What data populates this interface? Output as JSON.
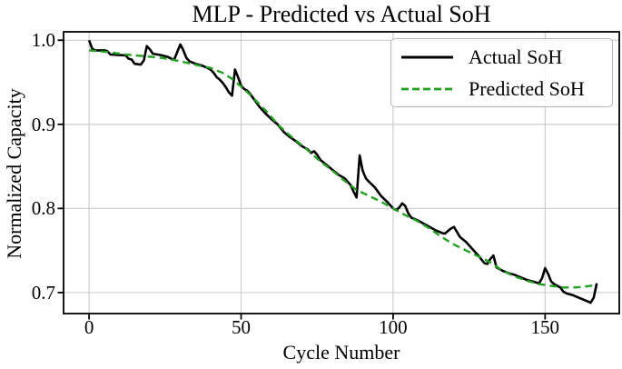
{
  "chart_data": {
    "type": "line",
    "title": "MLP - Predicted vs Actual SoH",
    "xlabel": "Cycle Number",
    "ylabel": "Normalized Capacity",
    "xlim": [
      -8.4,
      174.4
    ],
    "ylim": [
      0.675,
      1.01
    ],
    "x_ticks": [
      0,
      50,
      100,
      150
    ],
    "y_ticks": [
      0.7,
      0.8,
      0.9,
      1.0
    ],
    "grid": true,
    "grid_color": "#c9c9c9",
    "legend_position": "upper right",
    "series": [
      {
        "name": "Actual SoH",
        "color": "#000000",
        "style": "solid",
        "points": [
          [
            0,
            1.0
          ],
          [
            1,
            0.99
          ],
          [
            2,
            0.988
          ],
          [
            5,
            0.988
          ],
          [
            6,
            0.987
          ],
          [
            7,
            0.983
          ],
          [
            12,
            0.982
          ],
          [
            13,
            0.978
          ],
          [
            14,
            0.977
          ],
          [
            15,
            0.972
          ],
          [
            17,
            0.971
          ],
          [
            18,
            0.976
          ],
          [
            19,
            0.993
          ],
          [
            20,
            0.989
          ],
          [
            21,
            0.984
          ],
          [
            24,
            0.982
          ],
          [
            26,
            0.98
          ],
          [
            27,
            0.978
          ],
          [
            28,
            0.977
          ],
          [
            29,
            0.986
          ],
          [
            30,
            0.995
          ],
          [
            31,
            0.988
          ],
          [
            32,
            0.979
          ],
          [
            33,
            0.975
          ],
          [
            35,
            0.972
          ],
          [
            37,
            0.97
          ],
          [
            39,
            0.967
          ],
          [
            40,
            0.965
          ],
          [
            41,
            0.961
          ],
          [
            42,
            0.956
          ],
          [
            43,
            0.953
          ],
          [
            44,
            0.949
          ],
          [
            45,
            0.944
          ],
          [
            46,
            0.938
          ],
          [
            47,
            0.934
          ],
          [
            48,
            0.965
          ],
          [
            49,
            0.956
          ],
          [
            50,
            0.946
          ],
          [
            51,
            0.942
          ],
          [
            52,
            0.94
          ],
          [
            53,
            0.936
          ],
          [
            54,
            0.931
          ],
          [
            56,
            0.921
          ],
          [
            58,
            0.913
          ],
          [
            60,
            0.906
          ],
          [
            62,
            0.9
          ],
          [
            64,
            0.891
          ],
          [
            66,
            0.885
          ],
          [
            68,
            0.88
          ],
          [
            70,
            0.874
          ],
          [
            72,
            0.87
          ],
          [
            73,
            0.866
          ],
          [
            74,
            0.868
          ],
          [
            75,
            0.864
          ],
          [
            76,
            0.858
          ],
          [
            78,
            0.852
          ],
          [
            80,
            0.846
          ],
          [
            82,
            0.84
          ],
          [
            84,
            0.836
          ],
          [
            85,
            0.832
          ],
          [
            86,
            0.828
          ],
          [
            87,
            0.82
          ],
          [
            88,
            0.813
          ],
          [
            89,
            0.863
          ],
          [
            90,
            0.845
          ],
          [
            91,
            0.836
          ],
          [
            92,
            0.832
          ],
          [
            94,
            0.825
          ],
          [
            96,
            0.815
          ],
          [
            98,
            0.808
          ],
          [
            100,
            0.8
          ],
          [
            101,
            0.798
          ],
          [
            102,
            0.801
          ],
          [
            103,
            0.806
          ],
          [
            104,
            0.803
          ],
          [
            105,
            0.794
          ],
          [
            106,
            0.789
          ],
          [
            108,
            0.786
          ],
          [
            110,
            0.782
          ],
          [
            112,
            0.778
          ],
          [
            114,
            0.774
          ],
          [
            116,
            0.771
          ],
          [
            117,
            0.77
          ],
          [
            118,
            0.773
          ],
          [
            119,
            0.776
          ],
          [
            120,
            0.778
          ],
          [
            121,
            0.772
          ],
          [
            122,
            0.766
          ],
          [
            124,
            0.76
          ],
          [
            126,
            0.752
          ],
          [
            128,
            0.744
          ],
          [
            130,
            0.735
          ],
          [
            131,
            0.734
          ],
          [
            132,
            0.74
          ],
          [
            133,
            0.744
          ],
          [
            134,
            0.73
          ],
          [
            136,
            0.726
          ],
          [
            138,
            0.723
          ],
          [
            140,
            0.721
          ],
          [
            142,
            0.718
          ],
          [
            144,
            0.715
          ],
          [
            146,
            0.713
          ],
          [
            148,
            0.711
          ],
          [
            149,
            0.717
          ],
          [
            150,
            0.729
          ],
          [
            151,
            0.722
          ],
          [
            152,
            0.713
          ],
          [
            153,
            0.71
          ],
          [
            155,
            0.706
          ],
          [
            156,
            0.701
          ],
          [
            157,
            0.699
          ],
          [
            159,
            0.697
          ],
          [
            161,
            0.694
          ],
          [
            163,
            0.691
          ],
          [
            165,
            0.688
          ],
          [
            166,
            0.694
          ],
          [
            167,
            0.711
          ]
        ]
      },
      {
        "name": "Predicted SoH",
        "color": "#22a022",
        "style": "dashed",
        "points": [
          [
            0,
            0.988
          ],
          [
            6,
            0.986
          ],
          [
            12,
            0.983
          ],
          [
            18,
            0.981
          ],
          [
            24,
            0.979
          ],
          [
            30,
            0.975
          ],
          [
            36,
            0.97
          ],
          [
            40,
            0.967
          ],
          [
            44,
            0.961
          ],
          [
            47,
            0.954
          ],
          [
            50,
            0.945
          ],
          [
            53,
            0.935
          ],
          [
            56,
            0.924
          ],
          [
            59,
            0.913
          ],
          [
            62,
            0.9
          ],
          [
            65,
            0.89
          ],
          [
            68,
            0.881
          ],
          [
            72,
            0.869
          ],
          [
            76,
            0.856
          ],
          [
            80,
            0.845
          ],
          [
            84,
            0.833
          ],
          [
            88,
            0.822
          ],
          [
            92,
            0.815
          ],
          [
            96,
            0.808
          ],
          [
            100,
            0.8
          ],
          [
            104,
            0.792
          ],
          [
            108,
            0.785
          ],
          [
            112,
            0.776
          ],
          [
            116,
            0.766
          ],
          [
            120,
            0.757
          ],
          [
            124,
            0.75
          ],
          [
            128,
            0.743
          ],
          [
            132,
            0.736
          ],
          [
            136,
            0.726
          ],
          [
            140,
            0.719
          ],
          [
            144,
            0.714
          ],
          [
            148,
            0.71
          ],
          [
            152,
            0.708
          ],
          [
            156,
            0.706
          ],
          [
            160,
            0.706
          ],
          [
            163,
            0.707
          ],
          [
            167,
            0.709
          ]
        ]
      }
    ]
  }
}
